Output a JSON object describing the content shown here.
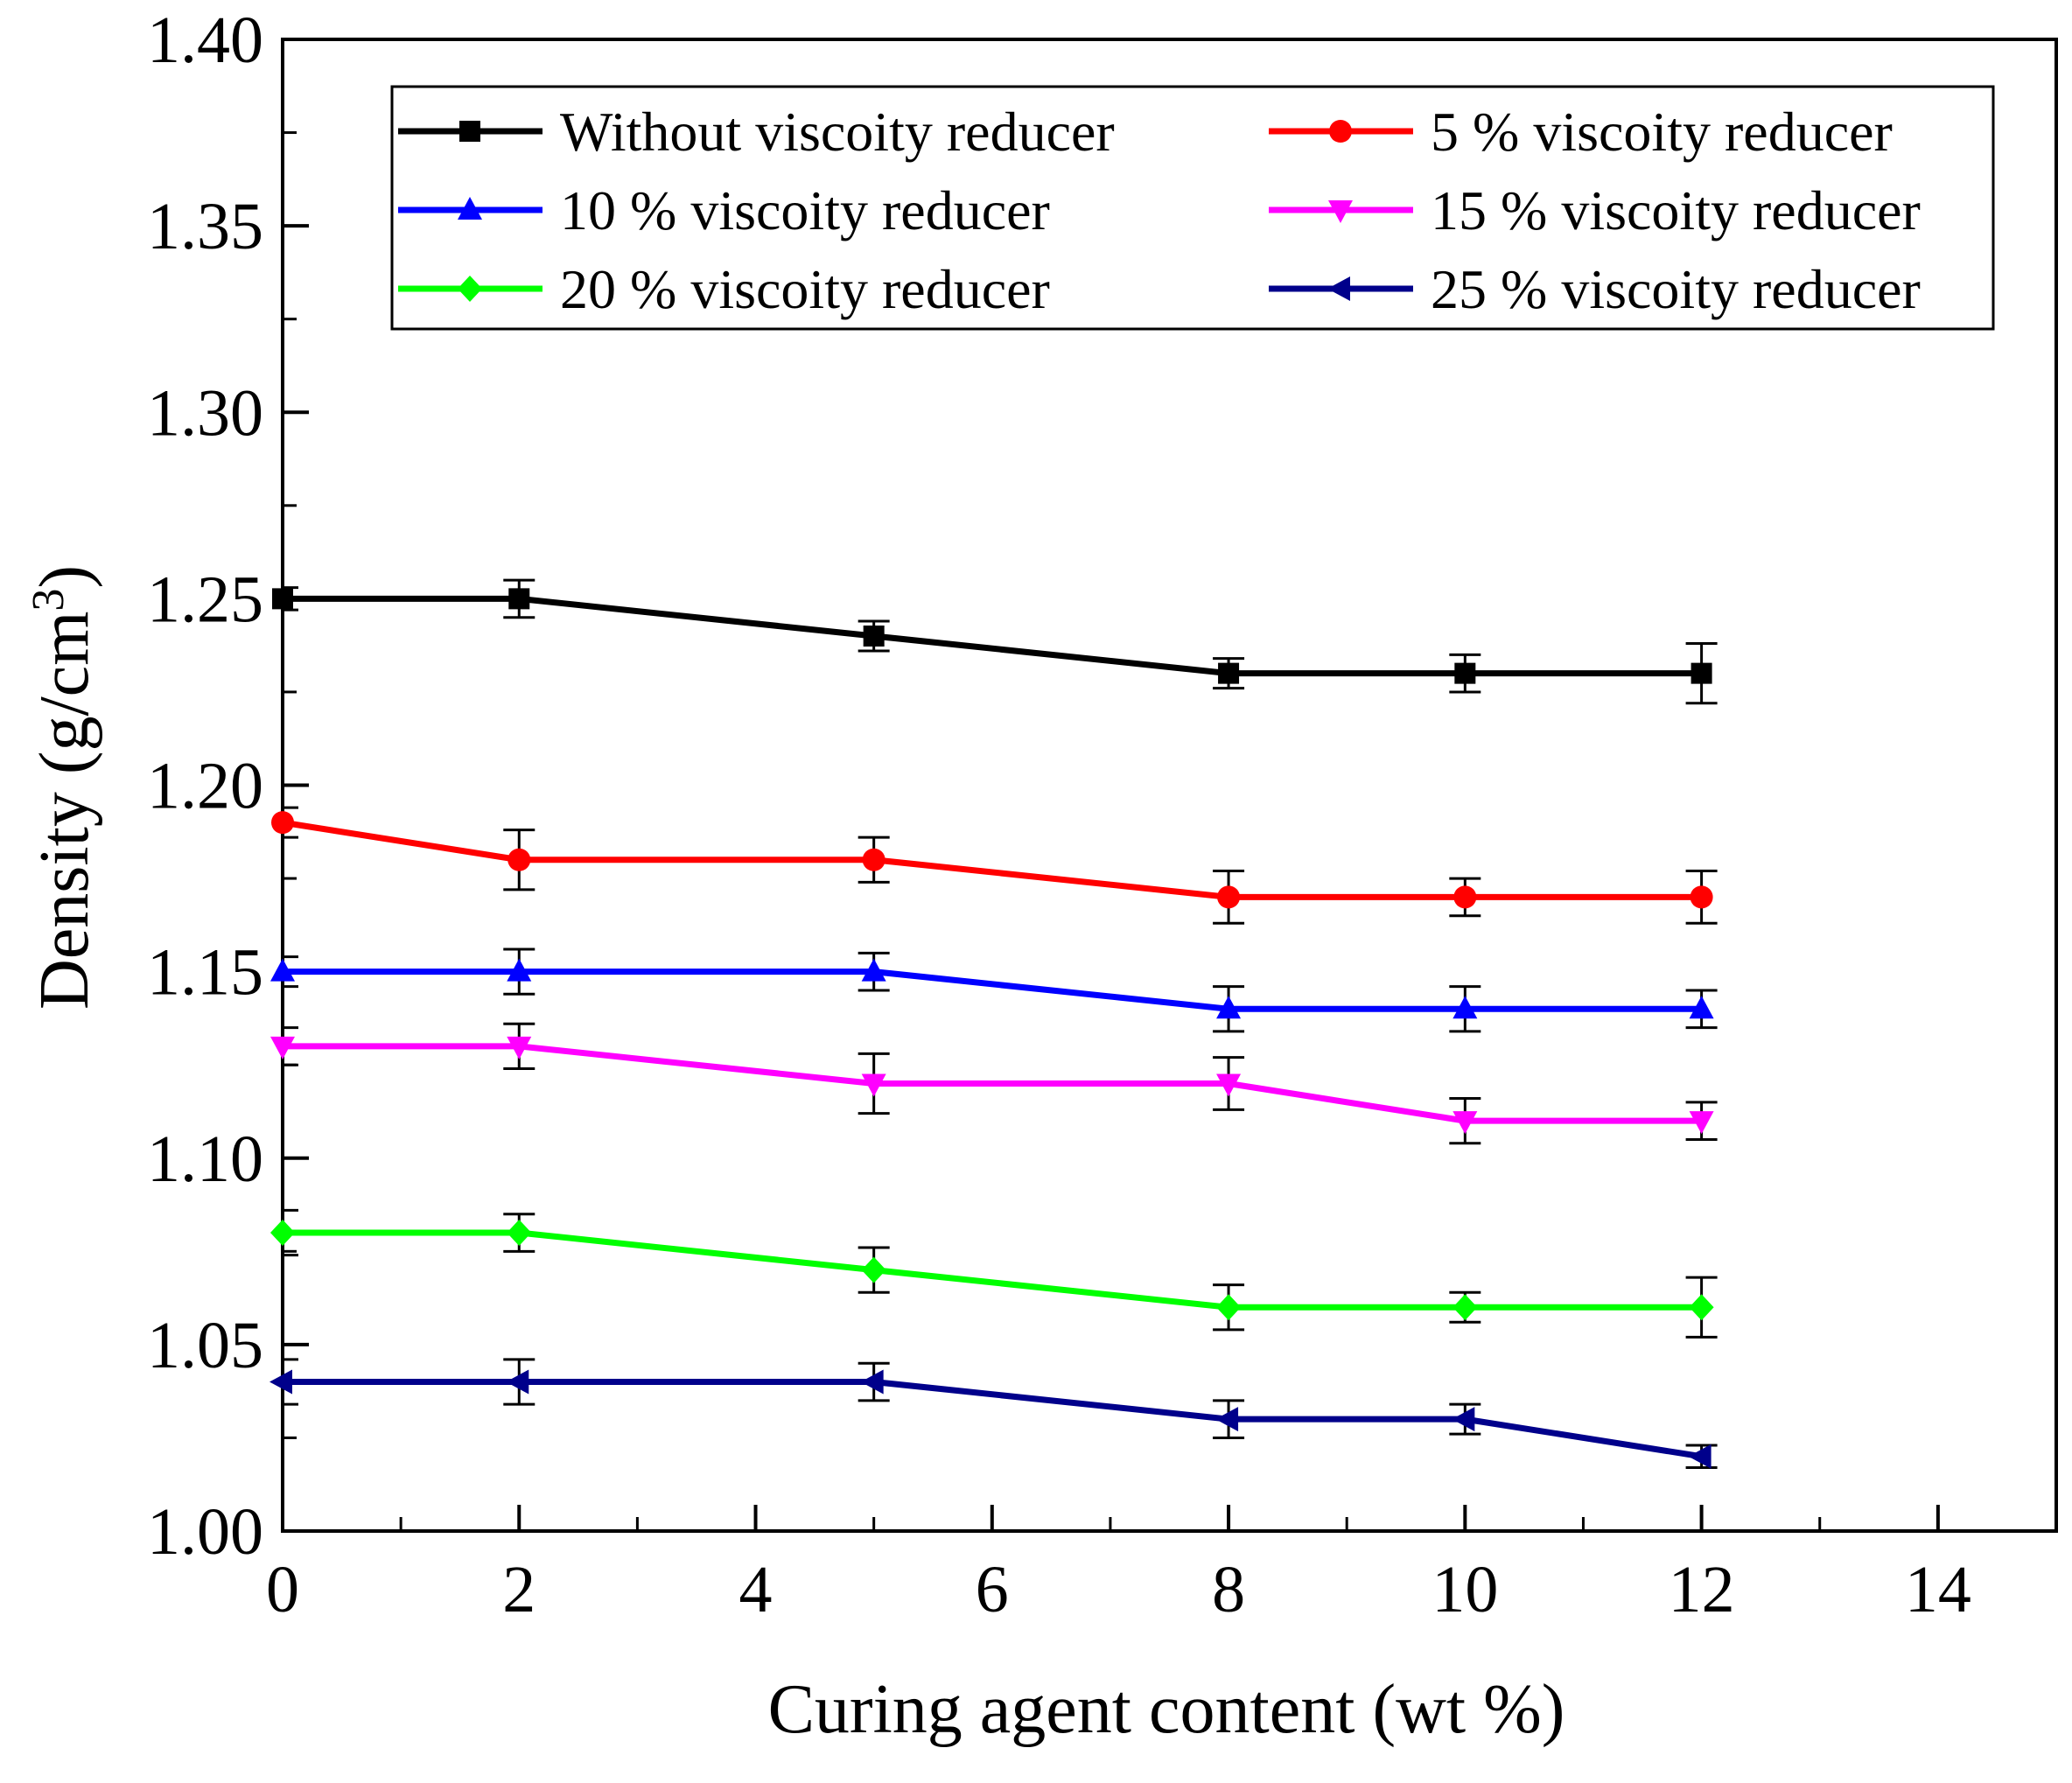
{
  "chart_data": {
    "type": "line",
    "xlabel": "Curing agent content (wt %)",
    "ylabel_main": "Density (g/cm",
    "ylabel_sup": "3",
    "ylabel_close": ")",
    "xlim": [
      0,
      15
    ],
    "ylim": [
      1.0,
      1.4
    ],
    "xticks": [
      "0",
      "2",
      "4",
      "6",
      "8",
      "10",
      "12",
      "14"
    ],
    "yticks": [
      "1.00",
      "1.05",
      "1.10",
      "1.15",
      "1.20",
      "1.25",
      "1.30",
      "1.35",
      "1.40"
    ],
    "grid": false,
    "legend_position": "top",
    "x": [
      0,
      2,
      5,
      8,
      10,
      12
    ],
    "series": [
      {
        "name": "Without viscoity reducer",
        "color": "#000000",
        "marker": "square",
        "values": [
          1.25,
          1.25,
          1.24,
          1.23,
          1.23,
          1.23
        ],
        "errors": [
          0.003,
          0.005,
          0.004,
          0.004,
          0.005,
          0.008
        ]
      },
      {
        "name": "5 % viscoity reducer",
        "color": "#ff0000",
        "marker": "circle",
        "values": [
          1.19,
          1.18,
          1.18,
          1.17,
          1.17,
          1.17
        ],
        "errors": [
          0.004,
          0.008,
          0.006,
          0.007,
          0.005,
          0.007
        ]
      },
      {
        "name": "10 % viscoity reducer",
        "color": "#0000ff",
        "marker": "triangle-up",
        "values": [
          1.15,
          1.15,
          1.15,
          1.14,
          1.14,
          1.14
        ],
        "errors": [
          0.004,
          0.006,
          0.005,
          0.006,
          0.006,
          0.005
        ]
      },
      {
        "name": "15 % viscoity reducer",
        "color": "#ff00ff",
        "marker": "triangle-down",
        "values": [
          1.13,
          1.13,
          1.12,
          1.12,
          1.11,
          1.11
        ],
        "errors": [
          0.005,
          0.006,
          0.008,
          0.007,
          0.006,
          0.005
        ]
      },
      {
        "name": "20 % viscoity reducer",
        "color": "#00ff00",
        "marker": "diamond",
        "values": [
          1.08,
          1.08,
          1.07,
          1.06,
          1.06,
          1.06
        ],
        "errors": [
          0.006,
          0.005,
          0.006,
          0.006,
          0.004,
          0.008
        ]
      },
      {
        "name": "25 % viscoity reducer",
        "color": "#00008b",
        "marker": "triangle-left",
        "values": [
          1.04,
          1.04,
          1.04,
          1.03,
          1.03,
          1.02
        ],
        "errors": [
          0.006,
          0.006,
          0.005,
          0.005,
          0.004,
          0.003
        ]
      }
    ]
  }
}
